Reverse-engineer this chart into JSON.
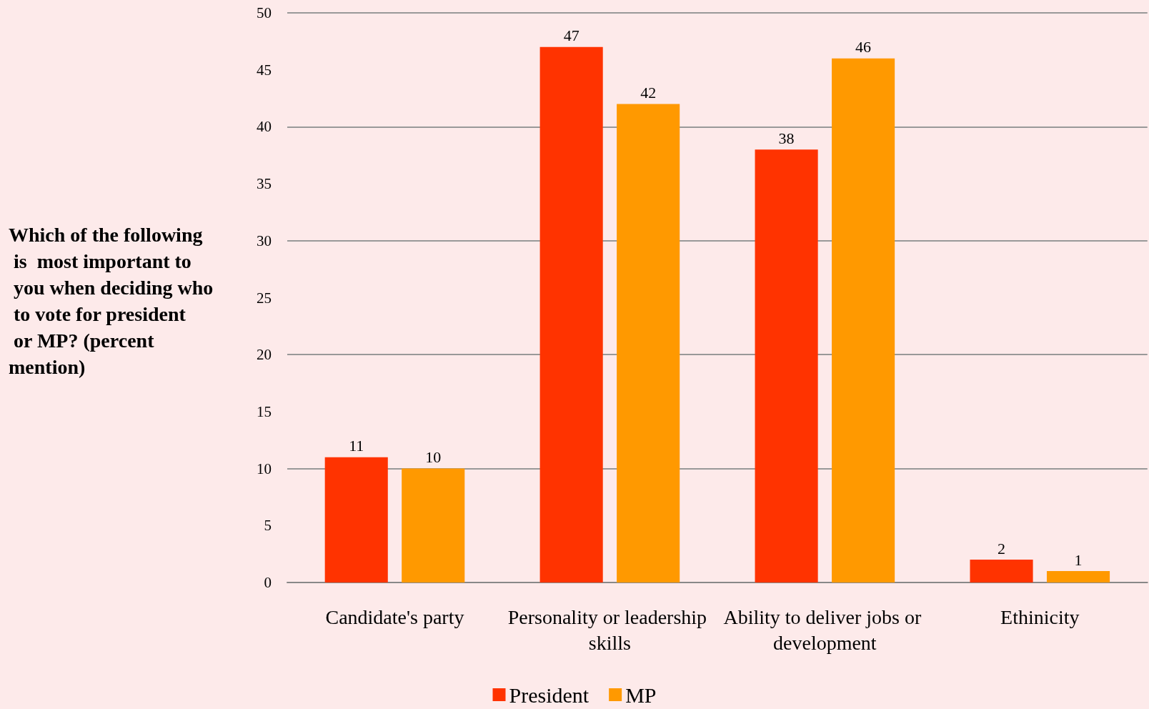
{
  "chart_data": {
    "type": "bar",
    "ylabel": "Which of the following is  most important to you when deciding who to vote for president or MP? (percent mention)",
    "categories": [
      "Candidate's party",
      "Personality or leadership skills",
      "Ability to deliver jobs or development",
      "Ethinicity"
    ],
    "series": [
      {
        "name": "President",
        "color": "#ff3300",
        "values": [
          11,
          47,
          38,
          2
        ]
      },
      {
        "name": "MP",
        "color": "#ff9900",
        "values": [
          10,
          42,
          46,
          1
        ]
      }
    ],
    "ylim": [
      0,
      50
    ],
    "yticks": [
      0,
      5,
      10,
      15,
      20,
      25,
      30,
      35,
      40,
      45,
      50
    ],
    "grid": "y",
    "legend": "bottom",
    "data_labels": true
  }
}
